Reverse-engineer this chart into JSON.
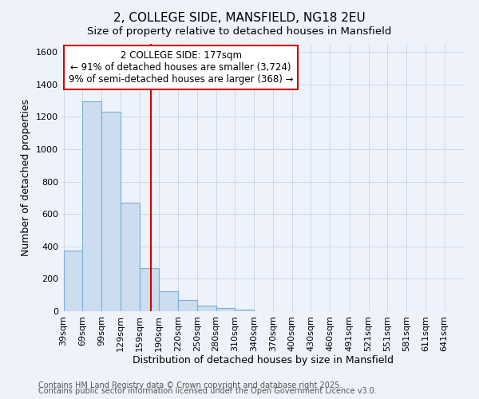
{
  "title": "2, COLLEGE SIDE, MANSFIELD, NG18 2EU",
  "subtitle": "Size of property relative to detached houses in Mansfield",
  "xlabel": "Distribution of detached houses by size in Mansfield",
  "ylabel": "Number of detached properties",
  "footnote1": "Contains HM Land Registry data © Crown copyright and database right 2025.",
  "footnote2": "Contains public sector information licensed under the Open Government Licence v3.0.",
  "categories": [
    "39sqm",
    "69sqm",
    "99sqm",
    "129sqm",
    "159sqm",
    "190sqm",
    "220sqm",
    "250sqm",
    "280sqm",
    "310sqm",
    "340sqm",
    "370sqm",
    "400sqm",
    "430sqm",
    "460sqm",
    "491sqm",
    "521sqm",
    "551sqm",
    "581sqm",
    "611sqm",
    "641sqm"
  ],
  "values": [
    375,
    1295,
    1230,
    670,
    265,
    125,
    70,
    35,
    20,
    12,
    0,
    0,
    0,
    0,
    0,
    0,
    0,
    0,
    0,
    0,
    0
  ],
  "bar_color": "#ccddf0",
  "bar_edge_color": "#7aafd4",
  "ylim": [
    0,
    1650
  ],
  "yticks": [
    0,
    200,
    400,
    600,
    800,
    1000,
    1200,
    1400,
    1600
  ],
  "annotation_line1": "2 COLLEGE SIDE: 177sqm",
  "annotation_line2": "← 91% of detached houses are smaller (3,724)",
  "annotation_line3": "9% of semi-detached houses are larger (368) →",
  "red_line_x": 177,
  "annotation_box_color": "#ffffff",
  "annotation_box_edge": "#cc0000",
  "red_line_color": "#cc0000",
  "background_color": "#eef2fb",
  "title_fontsize": 11,
  "subtitle_fontsize": 9.5,
  "tick_fontsize": 8,
  "label_fontsize": 9,
  "footnote_fontsize": 7,
  "annotation_fontsize": 8.5
}
